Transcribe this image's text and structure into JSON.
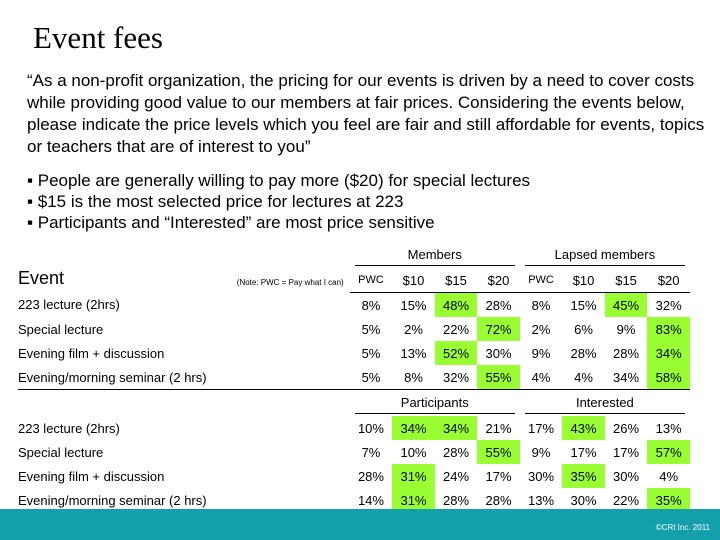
{
  "title": "Event fees",
  "quote": "“As a non-profit organization, the pricing for our events is driven by a need to cover costs while providing good value to our members at fair prices. Considering the events below, please indicate the price levels which you feel are fair and still affordable for events, topics or teachers that are of interest to you”",
  "bullets": [
    "▪ People are generally willing to pay more ($20) for special lectures",
    "▪ $15 is the most selected price for lectures at 223",
    "▪ Participants and “Interested” are most price sensitive"
  ],
  "table": {
    "event_header": "Event",
    "note": "(Note: PWC = Pay what I can)",
    "groups_top": [
      "Members",
      "Lapsed members"
    ],
    "groups_bottom": [
      "Participants",
      "Interested"
    ],
    "columns": [
      "PWC",
      "$10",
      "$15",
      "$20",
      "PWC",
      "$10",
      "$15",
      "$20"
    ],
    "rows_top": [
      {
        "label": "223 lecture (2hrs)",
        "values": [
          "8%",
          "15%",
          "48%",
          "28%",
          "8%",
          "15%",
          "45%",
          "32%"
        ],
        "highlight": [
          2,
          6
        ]
      },
      {
        "label": "Special lecture",
        "values": [
          "5%",
          "2%",
          "22%",
          "72%",
          "2%",
          "6%",
          "9%",
          "83%"
        ],
        "highlight": [
          3,
          7
        ]
      },
      {
        "label": "Evening film + discussion",
        "values": [
          "5%",
          "13%",
          "52%",
          "30%",
          "9%",
          "28%",
          "28%",
          "34%"
        ],
        "highlight": [
          2,
          7
        ]
      },
      {
        "label": "Evening/morning seminar (2 hrs)",
        "values": [
          "5%",
          "8%",
          "32%",
          "55%",
          "4%",
          "4%",
          "34%",
          "58%"
        ],
        "highlight": [
          3,
          7
        ]
      }
    ],
    "rows_bottom": [
      {
        "label": "223 lecture (2hrs)",
        "values": [
          "10%",
          "34%",
          "34%",
          "21%",
          "17%",
          "43%",
          "26%",
          "13%"
        ],
        "highlight": [
          1,
          2,
          5
        ]
      },
      {
        "label": "Special lecture",
        "values": [
          "7%",
          "10%",
          "28%",
          "55%",
          "9%",
          "17%",
          "17%",
          "57%"
        ],
        "highlight": [
          3,
          7
        ]
      },
      {
        "label": "Evening film + discussion",
        "values": [
          "28%",
          "31%",
          "24%",
          "17%",
          "30%",
          "35%",
          "30%",
          "4%"
        ],
        "highlight": [
          1,
          5
        ]
      },
      {
        "label": "Evening/morning seminar (2 hrs)",
        "values": [
          "14%",
          "31%",
          "28%",
          "28%",
          "13%",
          "30%",
          "22%",
          "35%"
        ],
        "highlight": [
          1,
          7
        ]
      }
    ]
  },
  "footer": {
    "copyright": "©CRI Inc. 2011",
    "color": "#13a0ab"
  }
}
